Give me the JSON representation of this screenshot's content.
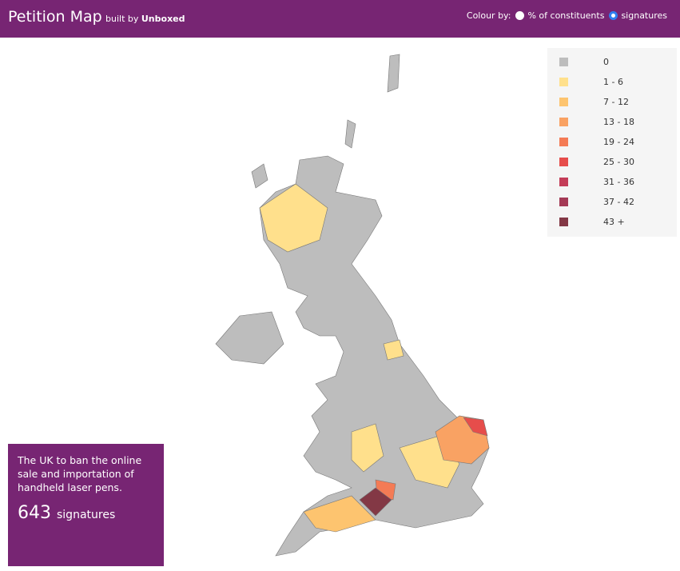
{
  "header": {
    "title": "Petition Map",
    "built_by": "built by",
    "brand": "Unboxed",
    "colour_by": "Colour by:",
    "options": [
      "% of constituents",
      "signatures"
    ],
    "selected_option": 1
  },
  "legend": [
    {
      "label": "0",
      "color": "#bdbdbd"
    },
    {
      "label": "1 - 6",
      "color": "#ffe08c"
    },
    {
      "label": "7 - 12",
      "color": "#fdc46f"
    },
    {
      "label": "13 - 18",
      "color": "#f9a263"
    },
    {
      "label": "19 - 24",
      "color": "#f47b55"
    },
    {
      "label": "25 - 30",
      "color": "#e64d4b"
    },
    {
      "label": "31 - 36",
      "color": "#c43d58"
    },
    {
      "label": "37 - 42",
      "color": "#a43a55"
    },
    {
      "label": "43 +",
      "color": "#833845"
    }
  ],
  "petition": {
    "title": "The UK to ban the online sale and importation of handheld laser pens.",
    "count": 643,
    "unit": "signatures"
  }
}
